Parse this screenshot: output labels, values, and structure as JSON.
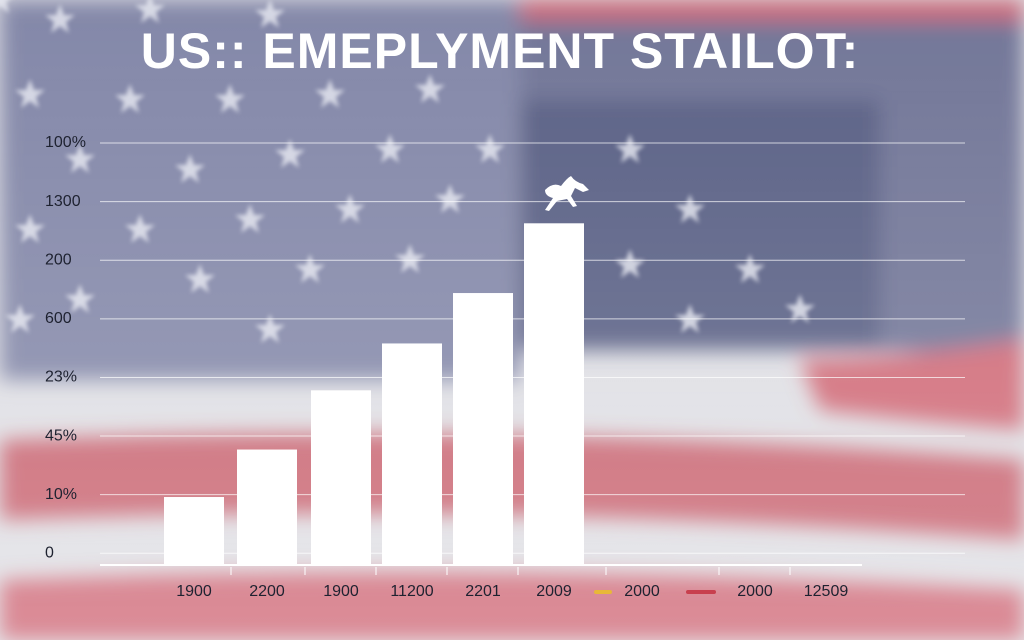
{
  "chart_data": {
    "type": "bar",
    "title": "US:: EMEPLYMENT STAILOT:",
    "categories": [
      "1900",
      "2200",
      "1900",
      "11200",
      "2201",
      "2009",
      "2000",
      "2000",
      "12509"
    ],
    "values": [
      0.96,
      1.77,
      2.78,
      3.58,
      4.44,
      5.63,
      null,
      null,
      null
    ],
    "color": "#ffffff",
    "ylim": [
      -0.2,
      7
    ],
    "yticks": [
      {
        "value": 0,
        "label": "0"
      },
      {
        "value": 1,
        "label": "10%"
      },
      {
        "value": 2,
        "label": "45%"
      },
      {
        "value": 3,
        "label": "23%"
      },
      {
        "value": 4,
        "label": "600"
      },
      {
        "value": 5,
        "label": "200"
      },
      {
        "value": 6,
        "label": "1300"
      },
      {
        "value": 7,
        "label": "100%"
      }
    ],
    "grid": true
  }
}
